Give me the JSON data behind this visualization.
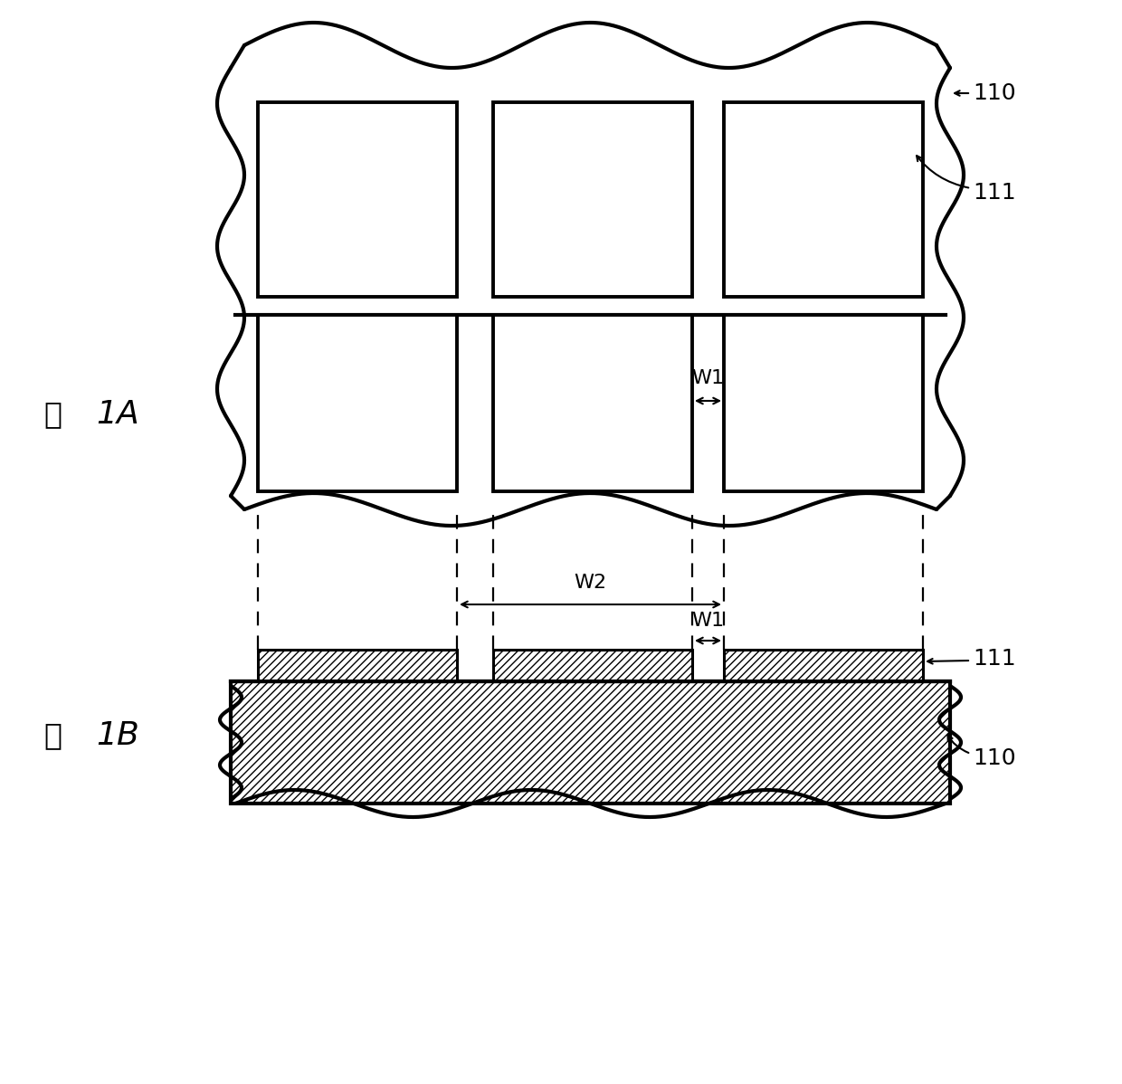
{
  "bg_color": "#ffffff",
  "line_color": "#000000",
  "fig_width": 12.4,
  "fig_height": 11.98,
  "label_110_top": "110",
  "label_111_top": "111",
  "label_110_bot": "110",
  "label_111_bot": "111",
  "label_w1_top": "W1",
  "label_w2": "W2",
  "label_w1_bot": "W1",
  "label_1A": "1A",
  "label_1B": "1B",
  "fig_label_1A": "图",
  "fig_label_1B": "图"
}
